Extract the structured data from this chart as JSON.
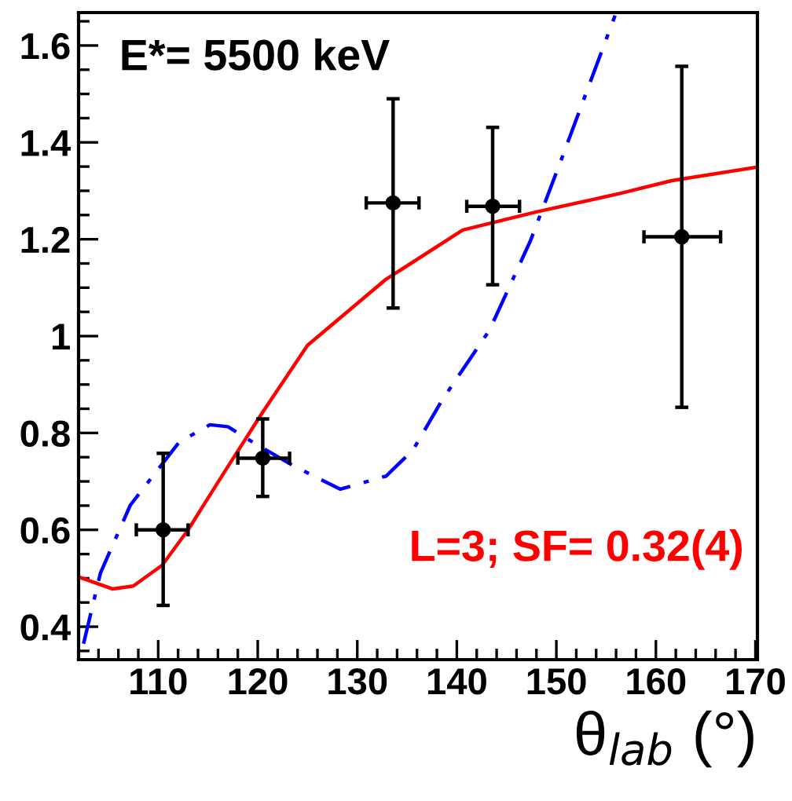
{
  "chart_data": {
    "type": "scatter",
    "xlabel": "θ$_{lab}$ (°)",
    "annotations": [
      "E*= 5500 keV",
      "L=3; SF= 0.32(4)"
    ],
    "xlim": [
      102,
      170.2
    ],
    "xticks": [
      110,
      120,
      130,
      140,
      150,
      160,
      170
    ],
    "ylim": [
      0.332,
      1.668
    ],
    "yticks": [
      0.4,
      0.6,
      0.8,
      1,
      1.2,
      1.4,
      1.6
    ],
    "grid": false,
    "legend": false,
    "series": [
      {
        "type": "line",
        "color": "#ff0000",
        "line_style": "solid",
        "marker": "none",
        "x": [
          102.0,
          105.4,
          107.5,
          110.4,
          113.0,
          116.7,
          120.4,
          125.0,
          132.8,
          140.6,
          147.9,
          156.3,
          161.6,
          170.2
        ],
        "values": [
          0.503,
          0.478,
          0.484,
          0.527,
          0.6,
          0.721,
          0.84,
          0.981,
          1.116,
          1.219,
          1.256,
          1.294,
          1.321,
          1.349
        ]
      },
      {
        "type": "line",
        "color": "#0000ff",
        "line_style": "dashed",
        "marker": "none",
        "x": [
          102.5,
          104.2,
          107.2,
          112.1,
          115.2,
          117.0,
          119.9,
          123.6,
          128.3,
          132.9,
          135.6,
          138.5,
          143.3,
          147.4,
          150.6,
          155.9
        ],
        "values": [
          0.365,
          0.511,
          0.651,
          0.781,
          0.817,
          0.813,
          0.776,
          0.732,
          0.684,
          0.711,
          0.765,
          0.867,
          1.013,
          1.197,
          1.37,
          1.662
        ]
      },
      {
        "type": "scatter",
        "color": "#000000",
        "marker": "circle",
        "x": [
          110.5,
          120.5,
          133.6,
          143.6,
          162.6
        ],
        "values": [
          0.6,
          0.748,
          1.275,
          1.268,
          1.205
        ],
        "errors": [
          [
            0.444,
            0.758
          ],
          [
            0.669,
            0.829
          ],
          [
            1.058,
            1.49
          ],
          [
            1.106,
            1.431
          ],
          [
            0.853,
            1.557
          ]
        ],
        "xerrors": [
          [
            107.8,
            113.0
          ],
          [
            118.0,
            123.2
          ],
          [
            130.9,
            136.2
          ],
          [
            141.0,
            146.3
          ],
          [
            158.8,
            166.5
          ]
        ]
      }
    ]
  }
}
